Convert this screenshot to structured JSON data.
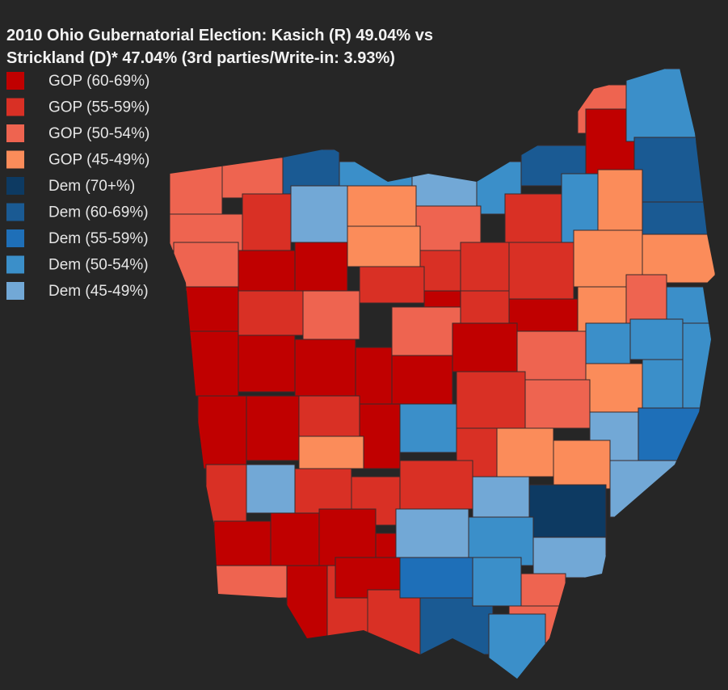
{
  "map": {
    "title_lines": [
      "2010 Ohio Gubernatorial Election: Kasich (R) 49.04% vs",
      "Strickland (D)* 47.04% (3rd parties/Write-in: 3.93%)"
    ],
    "legend": [
      {
        "label": "GOP (60-69%)",
        "color": "#c00000"
      },
      {
        "label": "GOP (55-59%)",
        "color": "#d93025"
      },
      {
        "label": "GOP (50-54%)",
        "color": "#ee6450"
      },
      {
        "label": "GOP (45-49%)",
        "color": "#fb8c5a"
      },
      {
        "label": "Dem (70+%)",
        "color": "#0d3a62"
      },
      {
        "label": "Dem (60-69%)",
        "color": "#1a5a93"
      },
      {
        "label": "Dem (55-59%)",
        "color": "#1e6fb8"
      },
      {
        "label": "Dem (50-54%)",
        "color": "#3b8fc9"
      },
      {
        "label": "Dem (45-49%)",
        "color": "#72a8d6"
      }
    ]
  }
}
